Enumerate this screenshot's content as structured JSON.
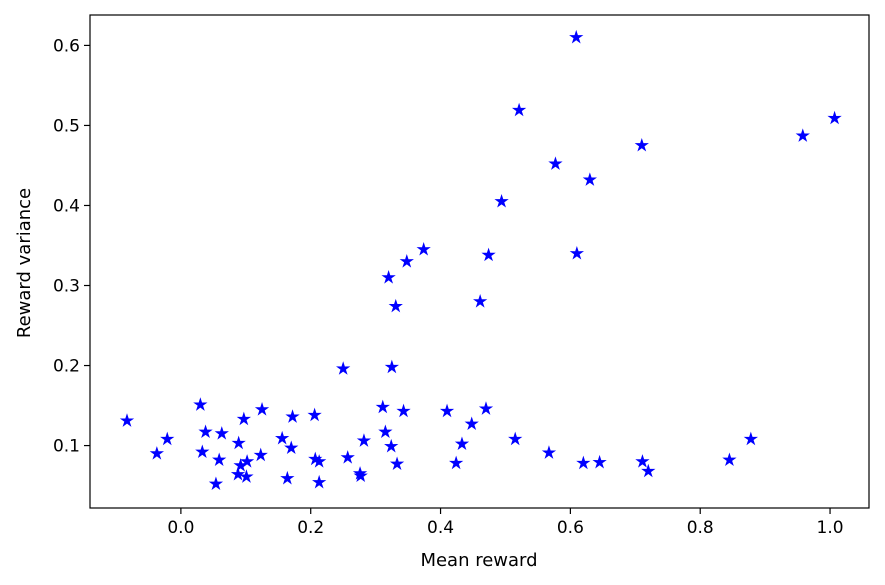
{
  "chart_data": {
    "type": "scatter",
    "title": "",
    "xlabel": "Mean reward",
    "ylabel": "Reward variance",
    "xlim": [
      -0.14,
      1.06
    ],
    "ylim": [
      0.022,
      0.638
    ],
    "xticks": [
      "0.0",
      "0.2",
      "0.4",
      "0.6",
      "0.8",
      "1.0"
    ],
    "yticks": [
      "0.1",
      "0.2",
      "0.3",
      "0.4",
      "0.5",
      "0.6"
    ],
    "grid": false,
    "legend": "none",
    "marker": "star",
    "color": "#0000ff",
    "points": [
      {
        "x": -0.083,
        "y": 0.131
      },
      {
        "x": -0.021,
        "y": 0.108
      },
      {
        "x": -0.037,
        "y": 0.09
      },
      {
        "x": 0.03,
        "y": 0.151
      },
      {
        "x": 0.038,
        "y": 0.117
      },
      {
        "x": 0.033,
        "y": 0.092
      },
      {
        "x": 0.063,
        "y": 0.115
      },
      {
        "x": 0.059,
        "y": 0.082
      },
      {
        "x": 0.054,
        "y": 0.052
      },
      {
        "x": 0.089,
        "y": 0.103
      },
      {
        "x": 0.097,
        "y": 0.133
      },
      {
        "x": 0.125,
        "y": 0.145
      },
      {
        "x": 0.123,
        "y": 0.088
      },
      {
        "x": 0.092,
        "y": 0.075
      },
      {
        "x": 0.102,
        "y": 0.08
      },
      {
        "x": 0.088,
        "y": 0.064
      },
      {
        "x": 0.101,
        "y": 0.061
      },
      {
        "x": 0.156,
        "y": 0.109
      },
      {
        "x": 0.172,
        "y": 0.136
      },
      {
        "x": 0.17,
        "y": 0.097
      },
      {
        "x": 0.164,
        "y": 0.059
      },
      {
        "x": 0.206,
        "y": 0.138
      },
      {
        "x": 0.207,
        "y": 0.083
      },
      {
        "x": 0.213,
        "y": 0.08
      },
      {
        "x": 0.213,
        "y": 0.054
      },
      {
        "x": 0.25,
        "y": 0.196
      },
      {
        "x": 0.257,
        "y": 0.085
      },
      {
        "x": 0.282,
        "y": 0.106
      },
      {
        "x": 0.276,
        "y": 0.065
      },
      {
        "x": 0.277,
        "y": 0.062
      },
      {
        "x": 0.311,
        "y": 0.148
      },
      {
        "x": 0.315,
        "y": 0.117
      },
      {
        "x": 0.324,
        "y": 0.099
      },
      {
        "x": 0.333,
        "y": 0.077
      },
      {
        "x": 0.32,
        "y": 0.31
      },
      {
        "x": 0.325,
        "y": 0.198
      },
      {
        "x": 0.331,
        "y": 0.274
      },
      {
        "x": 0.343,
        "y": 0.143
      },
      {
        "x": 0.348,
        "y": 0.33
      },
      {
        "x": 0.374,
        "y": 0.345
      },
      {
        "x": 0.41,
        "y": 0.143
      },
      {
        "x": 0.424,
        "y": 0.078
      },
      {
        "x": 0.433,
        "y": 0.102
      },
      {
        "x": 0.448,
        "y": 0.127
      },
      {
        "x": 0.461,
        "y": 0.28
      },
      {
        "x": 0.47,
        "y": 0.146
      },
      {
        "x": 0.474,
        "y": 0.338
      },
      {
        "x": 0.494,
        "y": 0.405
      },
      {
        "x": 0.515,
        "y": 0.108
      },
      {
        "x": 0.521,
        "y": 0.519
      },
      {
        "x": 0.567,
        "y": 0.091
      },
      {
        "x": 0.577,
        "y": 0.452
      },
      {
        "x": 0.609,
        "y": 0.61
      },
      {
        "x": 0.61,
        "y": 0.34
      },
      {
        "x": 0.62,
        "y": 0.078
      },
      {
        "x": 0.63,
        "y": 0.432
      },
      {
        "x": 0.645,
        "y": 0.079
      },
      {
        "x": 0.71,
        "y": 0.475
      },
      {
        "x": 0.711,
        "y": 0.08
      },
      {
        "x": 0.72,
        "y": 0.068
      },
      {
        "x": 0.845,
        "y": 0.082
      },
      {
        "x": 0.878,
        "y": 0.108
      },
      {
        "x": 0.958,
        "y": 0.487
      },
      {
        "x": 1.007,
        "y": 0.509
      }
    ]
  }
}
